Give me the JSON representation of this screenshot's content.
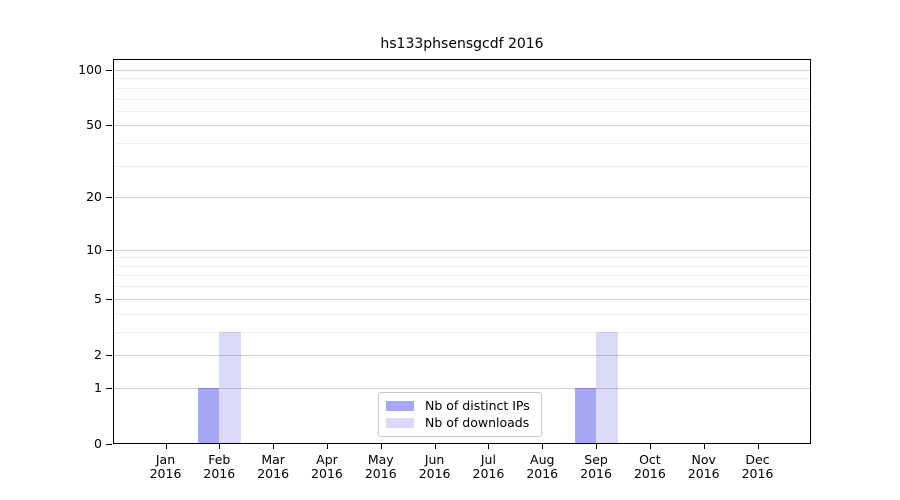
{
  "chart_data": {
    "type": "bar",
    "title": "hs133phsensgcdf 2016",
    "categories": [
      {
        "month": "Jan",
        "year": "2016"
      },
      {
        "month": "Feb",
        "year": "2016"
      },
      {
        "month": "Mar",
        "year": "2016"
      },
      {
        "month": "Apr",
        "year": "2016"
      },
      {
        "month": "May",
        "year": "2016"
      },
      {
        "month": "Jun",
        "year": "2016"
      },
      {
        "month": "Jul",
        "year": "2016"
      },
      {
        "month": "Aug",
        "year": "2016"
      },
      {
        "month": "Sep",
        "year": "2016"
      },
      {
        "month": "Oct",
        "year": "2016"
      },
      {
        "month": "Nov",
        "year": "2016"
      },
      {
        "month": "Dec",
        "year": "2016"
      }
    ],
    "series": [
      {
        "name": "Nb of distinct IPs",
        "key": "distinct-ips",
        "color": "#a7a7f6",
        "values": [
          0,
          1,
          0,
          0,
          0,
          0,
          0,
          0,
          1,
          0,
          0,
          0
        ]
      },
      {
        "name": "Nb of downloads",
        "key": "downloads",
        "color": "#dbdbf9",
        "values": [
          0,
          3,
          0,
          0,
          0,
          0,
          0,
          0,
          3,
          0,
          0,
          0
        ]
      }
    ],
    "yscale": "log(1+y)",
    "ylim": [
      0,
      116
    ],
    "ytick_labels": [
      "0",
      "1",
      "2",
      "5",
      "10",
      "20",
      "50",
      "100"
    ],
    "ytick_values": [
      0,
      1,
      2,
      5,
      10,
      20,
      50,
      100
    ],
    "minor_gridline_values": [
      3,
      4,
      6,
      7,
      8,
      9,
      30,
      40,
      60,
      70,
      80,
      90
    ],
    "grid": "horizontal",
    "grid_major_color": "rgba(0,0,0,0.18)",
    "grid_minor_color": "rgba(0,0,0,0.07)",
    "legend_position": "inside-bottom-center"
  }
}
